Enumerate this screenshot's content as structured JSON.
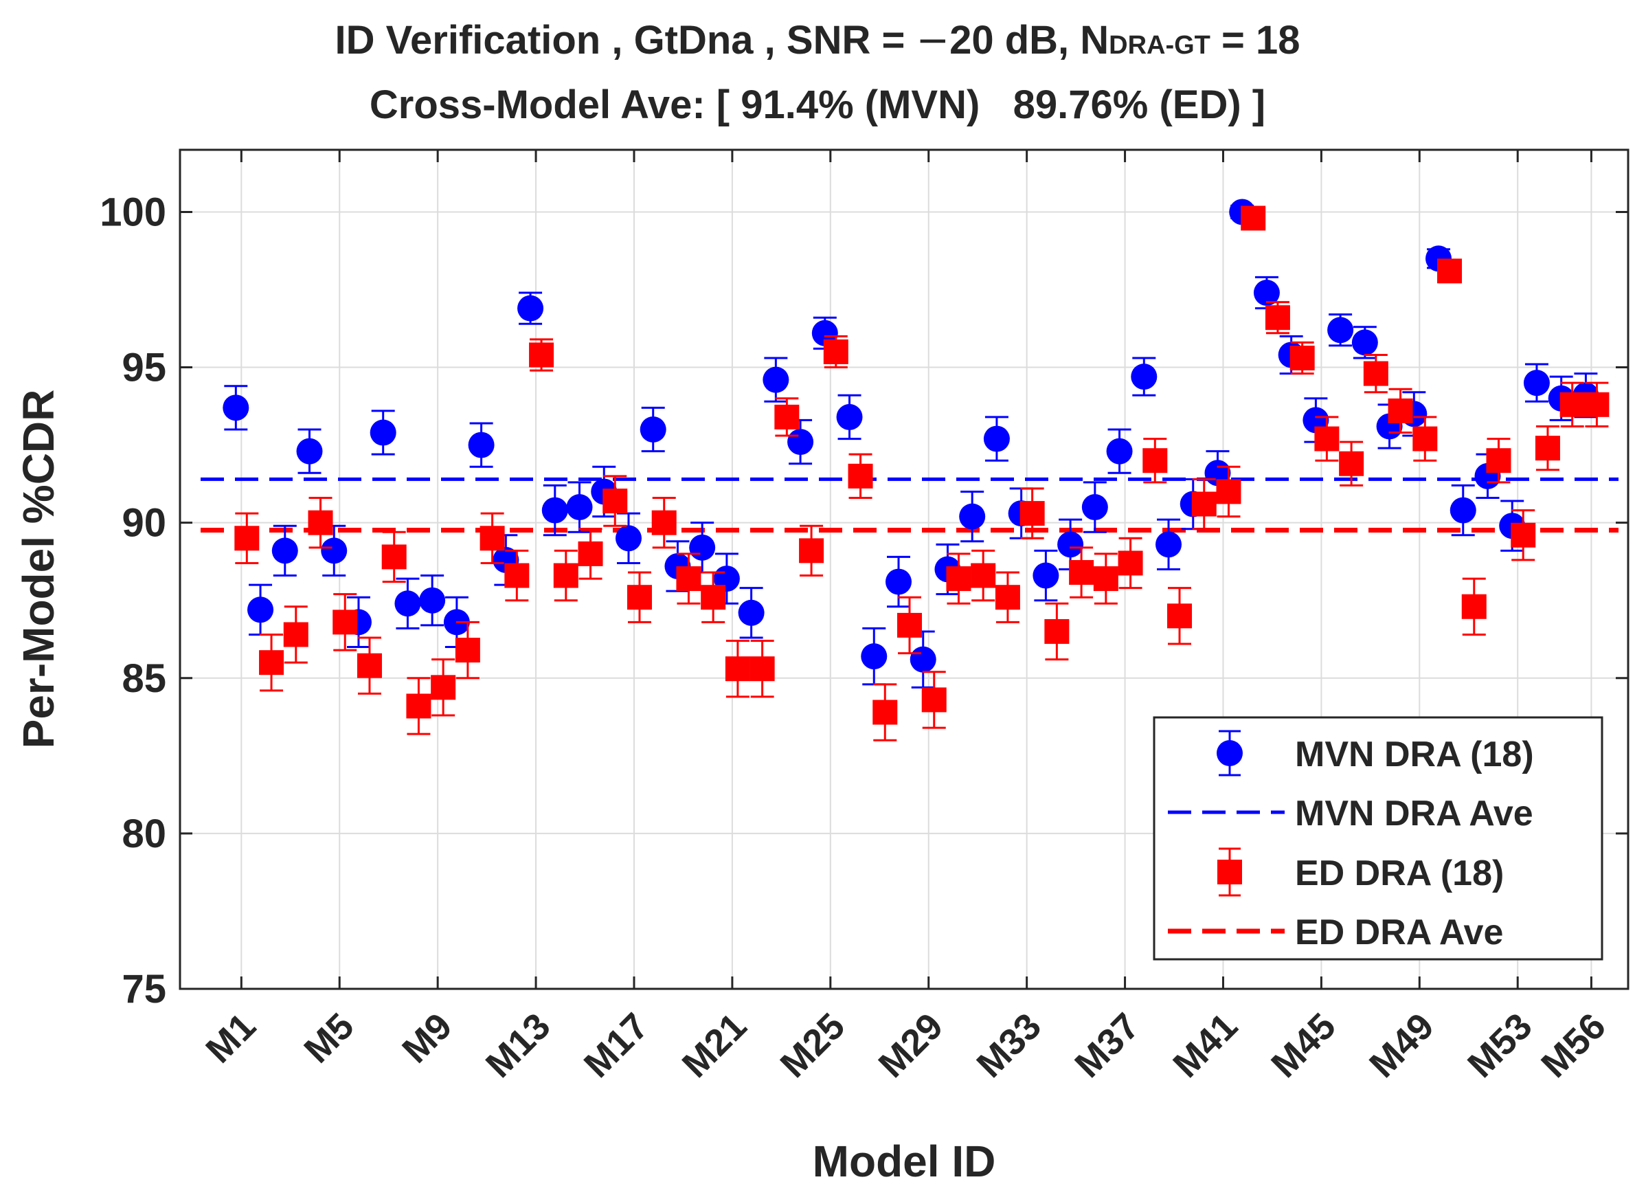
{
  "chart_data": {
    "type": "scatter",
    "title_line1": {
      "prefix": "ID Verification , GtDna , SNR = ",
      "minus": "−",
      "snr": "20 dB, N",
      "subscript": "DRA-GT",
      "suffix": " = 18"
    },
    "title_line2": "Cross-Model Ave: [ 91.4% (MVN)   89.76% (ED) ]",
    "xlabel": "Model ID",
    "ylabel": "Per-Model %CDR",
    "ylim": [
      75,
      102
    ],
    "yticks": [
      75,
      80,
      85,
      90,
      95,
      100
    ],
    "xlim": [
      -1.5,
      57.5
    ],
    "xticks": [
      "M1",
      "M5",
      "M9",
      "M13",
      "M17",
      "M21",
      "M25",
      "M29",
      "M33",
      "M37",
      "M41",
      "M45",
      "M49",
      "M53",
      "M56"
    ],
    "xtick_positions": [
      1,
      5,
      9,
      13,
      17,
      21,
      25,
      29,
      33,
      37,
      41,
      45,
      49,
      53,
      56
    ],
    "grid": true,
    "legend_position": "bottom-right",
    "series": [
      {
        "name": "MVN DRA (18)",
        "marker": "circle",
        "color": "#0000ff",
        "x": [
          1,
          2,
          3,
          4,
          5,
          6,
          7,
          8,
          9,
          10,
          11,
          12,
          13,
          14,
          15,
          16,
          17,
          18,
          19,
          20,
          21,
          22,
          23,
          24,
          25,
          26,
          27,
          28,
          29,
          30,
          31,
          32,
          33,
          34,
          35,
          36,
          37,
          38,
          39,
          40,
          41,
          42,
          43,
          44,
          45,
          46,
          47,
          48,
          49,
          50,
          51,
          52,
          53,
          54,
          55,
          56
        ],
        "values": [
          93.7,
          87.2,
          89.1,
          92.3,
          89.1,
          86.8,
          92.9,
          87.4,
          87.5,
          86.8,
          92.5,
          88.8,
          96.9,
          90.4,
          90.5,
          91.0,
          89.5,
          93.0,
          88.6,
          89.2,
          88.2,
          87.1,
          94.6,
          92.6,
          96.1,
          93.4,
          85.7,
          88.1,
          85.6,
          88.5,
          90.2,
          92.7,
          90.3,
          88.3,
          89.3,
          90.5,
          92.3,
          94.7,
          89.3,
          90.6,
          91.6,
          100.0,
          97.4,
          95.4,
          93.3,
          96.2,
          95.8,
          93.1,
          93.5,
          98.5,
          90.4,
          91.5,
          89.9,
          94.5,
          94.0,
          94.1
        ],
        "error": [
          0.7,
          0.8,
          0.8,
          0.7,
          0.8,
          0.8,
          0.7,
          0.8,
          0.8,
          0.8,
          0.7,
          0.8,
          0.5,
          0.8,
          0.8,
          0.8,
          0.8,
          0.7,
          0.8,
          0.8,
          0.8,
          0.8,
          0.7,
          0.7,
          0.5,
          0.7,
          0.9,
          0.8,
          0.9,
          0.8,
          0.8,
          0.7,
          0.8,
          0.8,
          0.8,
          0.8,
          0.7,
          0.6,
          0.8,
          0.8,
          0.7,
          0.2,
          0.5,
          0.6,
          0.7,
          0.5,
          0.5,
          0.7,
          0.7,
          0.3,
          0.8,
          0.7,
          0.8,
          0.6,
          0.7,
          0.7
        ]
      },
      {
        "name": "ED DRA (18)",
        "marker": "square",
        "color": "#ff0000",
        "x": [
          1,
          2,
          3,
          4,
          5,
          6,
          7,
          8,
          9,
          10,
          11,
          12,
          13,
          14,
          15,
          16,
          17,
          18,
          19,
          20,
          21,
          22,
          23,
          24,
          25,
          26,
          27,
          28,
          29,
          30,
          31,
          32,
          33,
          34,
          35,
          36,
          37,
          38,
          39,
          40,
          41,
          42,
          43,
          44,
          45,
          46,
          47,
          48,
          49,
          50,
          51,
          52,
          53,
          54,
          55,
          56
        ],
        "values": [
          89.5,
          85.5,
          86.4,
          90.0,
          86.8,
          85.4,
          88.9,
          84.1,
          84.7,
          85.9,
          89.5,
          88.3,
          95.4,
          88.3,
          89.0,
          90.7,
          87.6,
          90.0,
          88.2,
          87.6,
          85.3,
          85.3,
          93.4,
          89.1,
          95.5,
          91.5,
          83.9,
          86.7,
          84.3,
          88.2,
          88.3,
          87.6,
          90.3,
          86.5,
          88.4,
          88.2,
          88.7,
          92.0,
          87.0,
          90.6,
          91.0,
          99.8,
          96.6,
          95.3,
          92.7,
          91.9,
          94.8,
          93.6,
          92.7,
          98.1,
          87.3,
          92.0,
          89.6,
          92.4,
          93.8,
          93.8
        ],
        "error": [
          0.8,
          0.9,
          0.9,
          0.8,
          0.9,
          0.9,
          0.8,
          0.9,
          0.9,
          0.9,
          0.8,
          0.8,
          0.5,
          0.8,
          0.8,
          0.8,
          0.8,
          0.8,
          0.8,
          0.8,
          0.9,
          0.9,
          0.6,
          0.8,
          0.5,
          0.7,
          0.9,
          0.9,
          0.9,
          0.8,
          0.8,
          0.8,
          0.8,
          0.9,
          0.8,
          0.8,
          0.8,
          0.7,
          0.9,
          0.8,
          0.8,
          0.2,
          0.5,
          0.5,
          0.7,
          0.7,
          0.6,
          0.7,
          0.7,
          0.3,
          0.9,
          0.7,
          0.8,
          0.7,
          0.7,
          0.7
        ]
      }
    ],
    "averages": [
      {
        "name": "MVN DRA Ave",
        "value": 91.4,
        "color": "#0000ff",
        "style": "dashed"
      },
      {
        "name": "ED DRA Ave",
        "value": 89.76,
        "color": "#ff0000",
        "style": "dashed"
      }
    ]
  }
}
